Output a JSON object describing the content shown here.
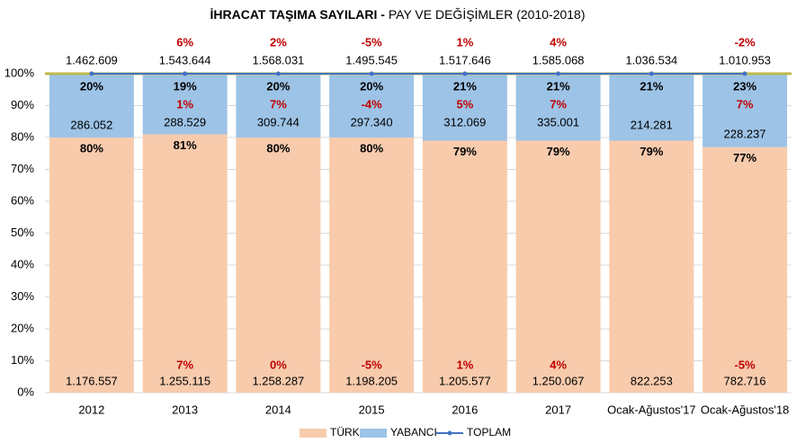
{
  "chart_data": {
    "type": "bar",
    "stacked": "percent",
    "title_bold": "İHRACAT TAŞIMA SAYILARI -",
    "title_rest": " PAY VE DEĞİŞİMLER (2010-2018)",
    "categories": [
      "2012",
      "2013",
      "2014",
      "2015",
      "2016",
      "2017",
      "Ocak-Ağustos'17",
      "Ocak-Ağustos'18"
    ],
    "ylim": [
      0,
      100
    ],
    "yticks": [
      "0%",
      "10%",
      "20%",
      "30%",
      "40%",
      "50%",
      "60%",
      "70%",
      "80%",
      "90%",
      "100%"
    ],
    "grid": true,
    "legend_position": "bottom",
    "series": [
      {
        "name": "TÜRK",
        "color": "#F8CBAD",
        "share_pct": [
          80,
          81,
          80,
          80,
          79,
          79,
          79,
          77
        ],
        "share_labels": [
          "80%",
          "81%",
          "80%",
          "80%",
          "79%",
          "79%",
          "79%",
          "77%"
        ],
        "values": [
          "1.176.557",
          "1.255.115",
          "1.258.287",
          "1.198.205",
          "1.205.577",
          "1.250.067",
          "822.253",
          "782.716"
        ],
        "change": [
          "",
          "7%",
          "0%",
          "-5%",
          "1%",
          "4%",
          "",
          "-5%"
        ]
      },
      {
        "name": "YABANCI",
        "color": "#9DC3E6",
        "share_pct": [
          20,
          19,
          20,
          20,
          21,
          21,
          21,
          23
        ],
        "share_labels": [
          "20%",
          "19%",
          "20%",
          "20%",
          "21%",
          "21%",
          "21%",
          "23%"
        ],
        "values": [
          "286.052",
          "288.529",
          "309.744",
          "297.340",
          "312.069",
          "335.001",
          "214.281",
          "228.237"
        ],
        "change": [
          "",
          "1%",
          "7%",
          "-4%",
          "5%",
          "7%",
          "",
          "7%"
        ]
      },
      {
        "name": "TOPLAM",
        "color": "#4472C4",
        "values": [
          "1.462.609",
          "1.543.644",
          "1.568.031",
          "1.495.545",
          "1.517.646",
          "1.585.068",
          "1.036.534",
          "1.010.953"
        ],
        "change": [
          "",
          "6%",
          "2%",
          "-5%",
          "1%",
          "4%",
          "",
          "-2%"
        ]
      }
    ],
    "colors": {
      "change_text": "#C00000",
      "value_text": "#000000",
      "axis_text": "#000000",
      "grid": "#D9D9D9",
      "total_line_accent": "#BFB94A"
    }
  }
}
